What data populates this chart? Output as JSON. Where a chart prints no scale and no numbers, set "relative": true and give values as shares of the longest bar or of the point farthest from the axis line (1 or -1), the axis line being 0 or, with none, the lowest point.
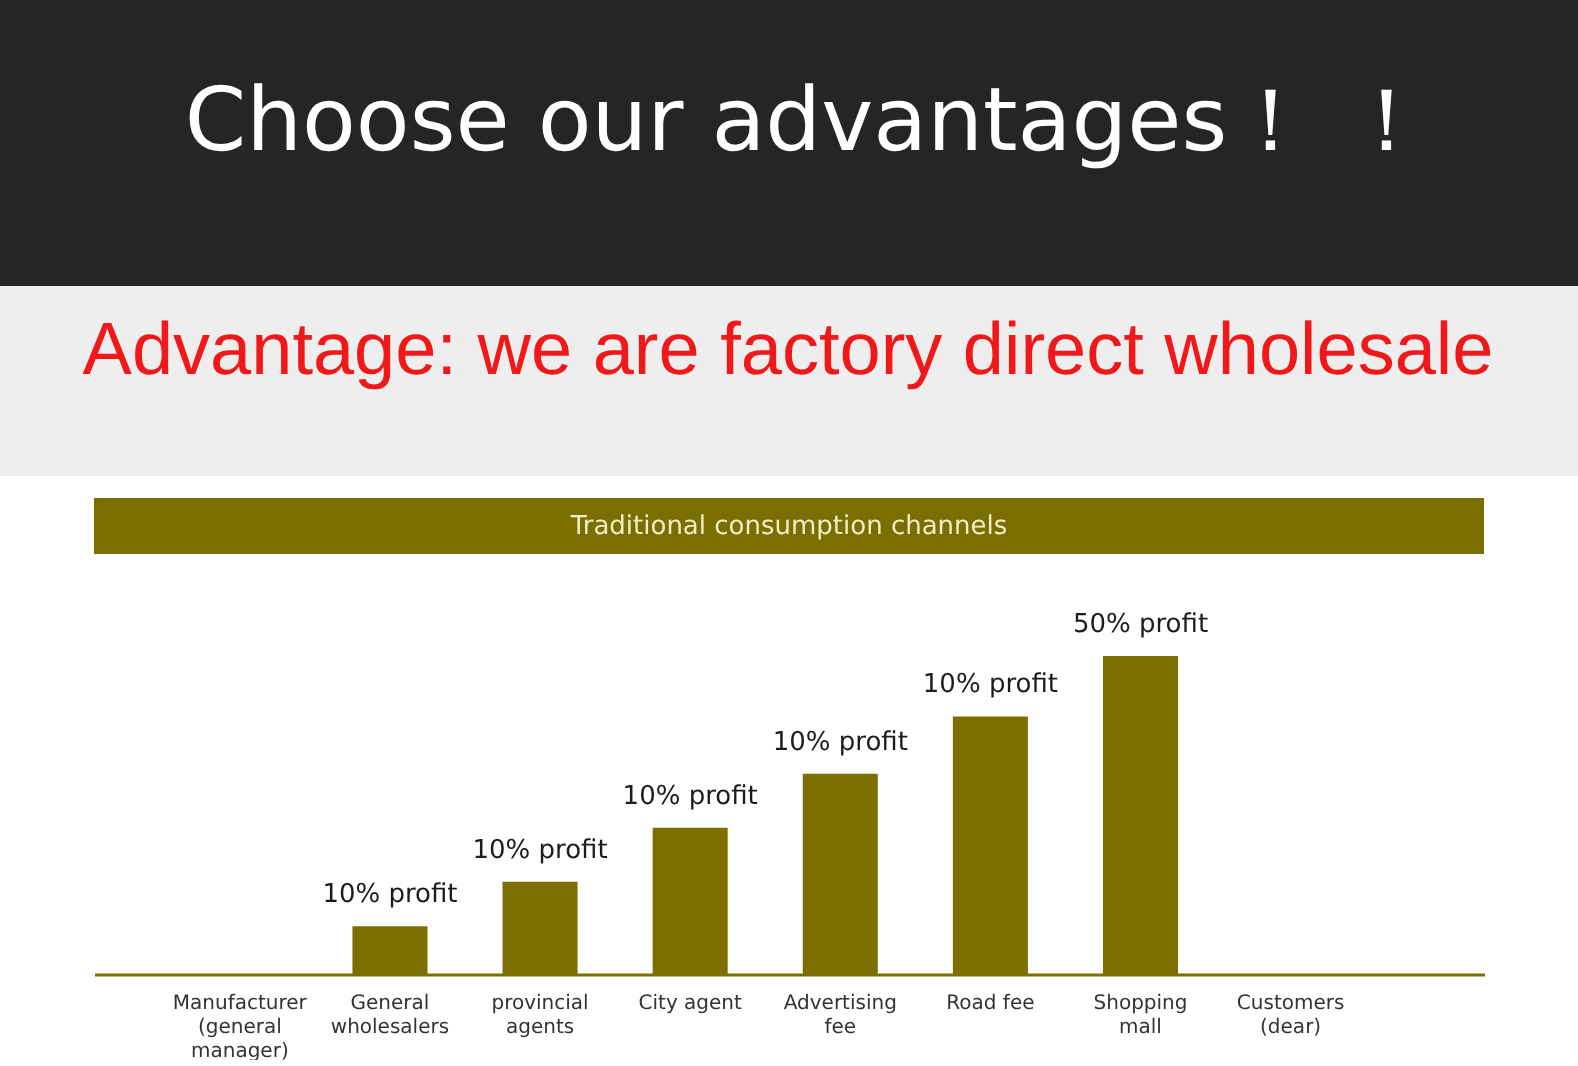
{
  "chart_data": {
    "type": "bar",
    "title": "Choose our advantages！ ！",
    "subtitle": "Advantage: we are factory direct wholesale",
    "annotations": [
      "Traditional consumption channels",
      {
        "text": "10% profit",
        "x": "General wholesalers",
        "y": 0.15
      },
      {
        "text": "10% profit",
        "x": "provincial agents",
        "y": 0.29
      },
      {
        "text": "10% profit",
        "x": "City agent",
        "y": 0.46
      },
      {
        "text": "10% profit",
        "x": "Advertising fee",
        "y": 0.63
      },
      {
        "text": "10% profit",
        "x": "Road fee",
        "y": 0.81
      },
      {
        "text": "50% profit",
        "x": "Shopping mall",
        "y": 1
      }
    ],
    "categories": [
      "Manufacturer (general manager)",
      "General wholesalers",
      "provincial agents",
      "City agent",
      "Advertising fee",
      "Road fee",
      "Shopping mall",
      "Customers (dear)"
    ],
    "values": [
      null,
      0.15,
      0.29,
      0.46,
      0.63,
      0.81,
      1,
      null
    ],
    "color": "#7c6f00",
    "relative": true,
    "tick_labels": "x"
  }
}
